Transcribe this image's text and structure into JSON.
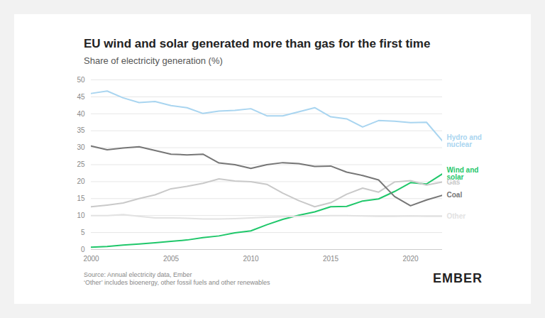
{
  "chart_data": {
    "type": "line",
    "title": "EU wind and solar generated more than gas for the first time",
    "subtitle": "Share of electricity generation (%)",
    "caption": [
      "Source: Annual electricity data, Ember",
      "‘Other’ includes bioenergy, other fossil fuels and other renewables"
    ],
    "logo": "EMBER",
    "x": [
      2000,
      2001,
      2002,
      2003,
      2004,
      2005,
      2006,
      2007,
      2008,
      2009,
      2010,
      2011,
      2012,
      2013,
      2014,
      2015,
      2016,
      2017,
      2018,
      2019,
      2020,
      2021,
      2022
    ],
    "series": [
      {
        "name": "Hydro and nuclear",
        "color": "#a9d5f0",
        "values": [
          46,
          46.7,
          44.7,
          43.3,
          43.6,
          42.4,
          41.8,
          40.1,
          40.8,
          41,
          41.5,
          39.4,
          39.4,
          40.6,
          41.8,
          39.1,
          38.5,
          36.1,
          38,
          37.8,
          37.4,
          37.5,
          32
        ]
      },
      {
        "name": "Wind and solar",
        "color": "#1fc76a",
        "values": [
          0.7,
          0.9,
          1.3,
          1.6,
          2,
          2.4,
          2.8,
          3.5,
          4,
          4.9,
          5.5,
          7.3,
          8.9,
          10.1,
          11.1,
          12.6,
          12.7,
          14.3,
          14.9,
          17.1,
          19.7,
          19.3,
          22.3
        ]
      },
      {
        "name": "Gas",
        "color": "#c9c9c9",
        "values": [
          12.6,
          13.1,
          13.7,
          15,
          16.1,
          17.9,
          18.6,
          19.5,
          20.8,
          20.2,
          20,
          19.2,
          16.6,
          14.4,
          12.6,
          13.8,
          16.3,
          18.1,
          16.9,
          19.9,
          20.3,
          19,
          19.9
        ]
      },
      {
        "name": "Coal",
        "color": "#767676",
        "values": [
          30.5,
          29.4,
          29.9,
          30.3,
          29.2,
          28.1,
          27.9,
          28.1,
          25.5,
          25,
          23.9,
          25,
          25.6,
          25.3,
          24.5,
          24.6,
          22.8,
          21.8,
          20.5,
          15.6,
          12.9,
          14.6,
          16
        ]
      },
      {
        "name": "Other",
        "color": "#e2e2e2",
        "values": [
          10,
          10,
          10.3,
          9.8,
          9.3,
          9.3,
          9.2,
          9,
          9,
          9.1,
          9.3,
          9.5,
          9.7,
          9.8,
          9.9,
          10,
          10,
          9.9,
          9.8,
          9.8,
          9.9,
          9.8,
          9.8
        ]
      }
    ],
    "xlim": [
      2000,
      2022
    ],
    "ylim": [
      0,
      50
    ],
    "xticks": [
      2000,
      2005,
      2010,
      2015,
      2020
    ],
    "yticks": [
      0,
      5,
      10,
      15,
      20,
      25,
      30,
      35,
      40,
      45,
      50
    ],
    "grid": true
  }
}
